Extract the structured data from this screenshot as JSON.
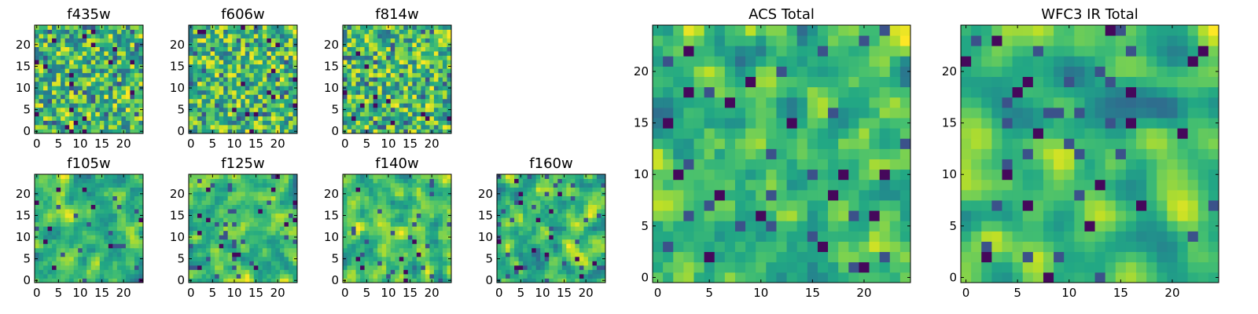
{
  "figure": {
    "panels_order": [
      "f435w",
      "f606w",
      "f814w",
      "f105w",
      "f125w",
      "f140w",
      "f160w",
      "ACS Total",
      "WFC3 IR Total"
    ]
  },
  "chart_data": [
    {
      "type": "heatmap",
      "title": "f435w",
      "xlabel": "",
      "ylabel": "",
      "grid_size": 25,
      "xlim": [
        -0.5,
        24.5
      ],
      "ylim": [
        -0.5,
        24.5
      ],
      "xticks": [
        0,
        5,
        10,
        15,
        20
      ],
      "yticks": [
        0,
        5,
        10,
        15,
        20
      ],
      "colormap": "viridis",
      "seed": 11,
      "smooth": 0
    },
    {
      "type": "heatmap",
      "title": "f606w",
      "xlabel": "",
      "ylabel": "",
      "grid_size": 25,
      "xlim": [
        -0.5,
        24.5
      ],
      "ylim": [
        -0.5,
        24.5
      ],
      "xticks": [
        0,
        5,
        10,
        15,
        20
      ],
      "yticks": [
        0,
        5,
        10,
        15,
        20
      ],
      "colormap": "viridis",
      "seed": 23,
      "smooth": 0
    },
    {
      "type": "heatmap",
      "title": "f814w",
      "xlabel": "",
      "ylabel": "",
      "grid_size": 25,
      "xlim": [
        -0.5,
        24.5
      ],
      "ylim": [
        -0.5,
        24.5
      ],
      "xticks": [
        0,
        5,
        10,
        15,
        20
      ],
      "yticks": [
        0,
        5,
        10,
        15,
        20
      ],
      "colormap": "viridis",
      "seed": 37,
      "smooth": 0
    },
    {
      "type": "heatmap",
      "title": "f105w",
      "xlabel": "",
      "ylabel": "",
      "grid_size": 25,
      "xlim": [
        -0.5,
        24.5
      ],
      "ylim": [
        -0.5,
        24.5
      ],
      "xticks": [
        0,
        5,
        10,
        15,
        20
      ],
      "yticks": [
        0,
        5,
        10,
        15,
        20
      ],
      "colormap": "viridis",
      "seed": 41,
      "smooth": 1
    },
    {
      "type": "heatmap",
      "title": "f125w",
      "xlabel": "",
      "ylabel": "",
      "grid_size": 25,
      "xlim": [
        -0.5,
        24.5
      ],
      "ylim": [
        -0.5,
        24.5
      ],
      "xticks": [
        0,
        5,
        10,
        15,
        20
      ],
      "yticks": [
        0,
        5,
        10,
        15,
        20
      ],
      "colormap": "viridis",
      "seed": 53,
      "smooth": 1
    },
    {
      "type": "heatmap",
      "title": "f140w",
      "xlabel": "",
      "ylabel": "",
      "grid_size": 25,
      "xlim": [
        -0.5,
        24.5
      ],
      "ylim": [
        -0.5,
        24.5
      ],
      "xticks": [
        0,
        5,
        10,
        15,
        20
      ],
      "yticks": [
        0,
        5,
        10,
        15,
        20
      ],
      "colormap": "viridis",
      "seed": 67,
      "smooth": 1
    },
    {
      "type": "heatmap",
      "title": "f160w",
      "xlabel": "",
      "ylabel": "",
      "grid_size": 25,
      "xlim": [
        -0.5,
        24.5
      ],
      "ylim": [
        -0.5,
        24.5
      ],
      "xticks": [
        0,
        5,
        10,
        15,
        20
      ],
      "yticks": [
        0,
        5,
        10,
        15,
        20
      ],
      "colormap": "viridis",
      "seed": 79,
      "smooth": 1
    },
    {
      "type": "heatmap",
      "title": "ACS Total",
      "xlabel": "",
      "ylabel": "",
      "grid_size": 25,
      "xlim": [
        -0.5,
        24.5
      ],
      "ylim": [
        -0.5,
        24.5
      ],
      "xticks": [
        0,
        5,
        10,
        15,
        20
      ],
      "yticks": [
        0,
        5,
        10,
        15,
        20
      ],
      "colormap": "viridis",
      "seed": 89,
      "smooth": 1
    },
    {
      "type": "heatmap",
      "title": "WFC3 IR Total",
      "xlabel": "",
      "ylabel": "",
      "grid_size": 25,
      "xlim": [
        -0.5,
        24.5
      ],
      "ylim": [
        -0.5,
        24.5
      ],
      "xticks": [
        0,
        5,
        10,
        15,
        20
      ],
      "yticks": [
        0,
        5,
        10,
        15,
        20
      ],
      "colormap": "viridis",
      "seed": 97,
      "smooth": 2
    }
  ]
}
